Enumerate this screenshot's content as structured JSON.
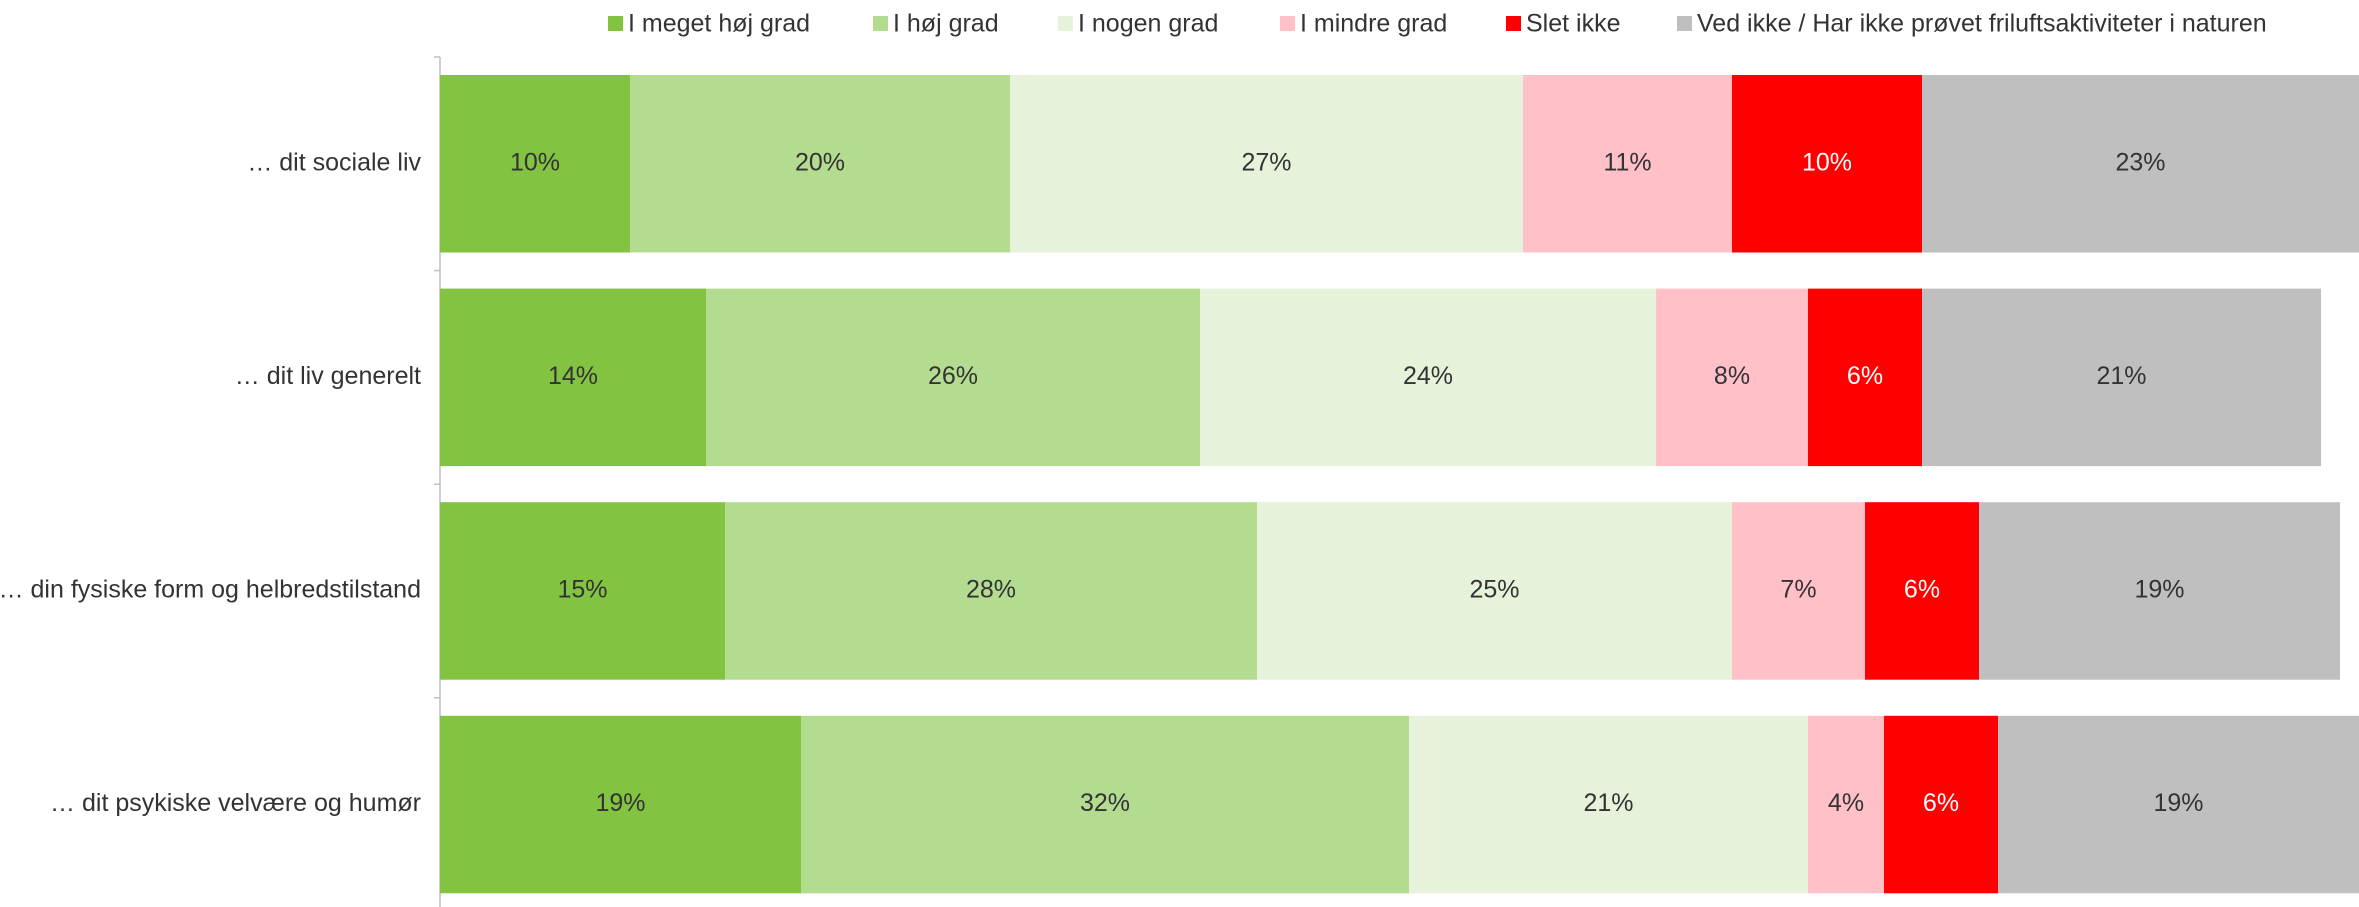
{
  "chart_data": {
    "type": "stacked_barh",
    "categories": [
      "… dit sociale liv",
      "… dit liv generelt",
      "… din fysiske form og helbredstilstand",
      "… dit psykiske velvære og humør"
    ],
    "series": [
      {
        "name": "I meget høj grad",
        "color": "#82c341",
        "label_color": "#333333",
        "values": [
          10,
          14,
          15,
          19
        ],
        "value_labels": [
          "10%",
          "14%",
          "15%",
          "19%"
        ]
      },
      {
        "name": "I høj grad",
        "color": "#b4dc91",
        "label_color": "#333333",
        "values": [
          20,
          26,
          28,
          32
        ],
        "value_labels": [
          "20%",
          "26%",
          "28%",
          "32%"
        ]
      },
      {
        "name": "I nogen grad",
        "color": "#e6f2d9",
        "label_color": "#333333",
        "values": [
          27,
          24,
          25,
          21
        ],
        "value_labels": [
          "27%",
          "24%",
          "25%",
          "21%"
        ]
      },
      {
        "name": "I mindre grad",
        "color": "#ffc0c8",
        "label_color": "#333333",
        "values": [
          11,
          8,
          7,
          4
        ],
        "value_labels": [
          "11%",
          "8%",
          "7%",
          "4%"
        ]
      },
      {
        "name": "Slet ikke",
        "color": "#ff0000",
        "label_color": "#ffffff",
        "values": [
          10,
          6,
          6,
          6
        ],
        "value_labels": [
          "10%",
          "6%",
          "6%",
          "6%"
        ]
      },
      {
        "name": "Ved ikke / Har ikke prøvet friluftsaktiviteter i naturen",
        "color": "#bfbfbf",
        "label_color": "#333333",
        "values": [
          23,
          21,
          19,
          19
        ],
        "value_labels": [
          "23%",
          "21%",
          "19%",
          "19%"
        ]
      }
    ],
    "xlim": [
      0,
      100
    ],
    "legend": "top"
  }
}
